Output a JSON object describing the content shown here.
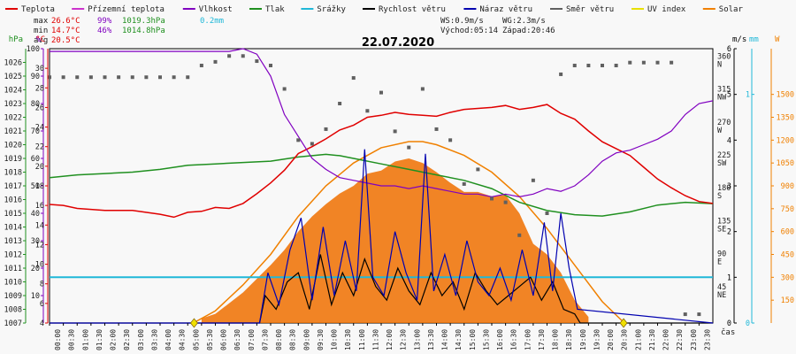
{
  "chart_data": {
    "type": "line",
    "title": "22.07.2020",
    "legend": [
      {
        "key": "teplota",
        "label": "Teplota",
        "color": "#e00000",
        "style": "line"
      },
      {
        "key": "prizemni",
        "label": "Přízemní teplota",
        "color": "#cc33cc",
        "style": "line"
      },
      {
        "key": "vlhkost",
        "label": "Vlhkost",
        "color": "#8000c0",
        "style": "line"
      },
      {
        "key": "tlak",
        "label": "Tlak",
        "color": "#209020",
        "style": "line"
      },
      {
        "key": "srazky",
        "label": "Srážky",
        "color": "#20b8d8",
        "style": "line"
      },
      {
        "key": "rychlost",
        "label": "Rychlost větru",
        "color": "#000000",
        "style": "line"
      },
      {
        "key": "naraz",
        "label": "Náraz větru",
        "color": "#0000b0",
        "style": "line"
      },
      {
        "key": "smer",
        "label": "Směr větru",
        "color": "#606060",
        "style": "line"
      },
      {
        "key": "uv",
        "label": "UV index",
        "color": "#e8e000",
        "style": "line"
      },
      {
        "key": "solar",
        "label": "Solar",
        "color": "#f08000",
        "style": "line"
      }
    ],
    "stats": {
      "max": {
        "label": "max",
        "temp": "26.6°C",
        "hum": "99%",
        "press": "1019.3hPa",
        "rain": "0.2mm"
      },
      "min": {
        "label": "min",
        "temp": "14.7°C",
        "hum": "46%",
        "press": "1014.8hPa"
      },
      "avg": {
        "label": "avg",
        "temp": "20.5°C"
      }
    },
    "info": {
      "ws": "WS:0.9m/s",
      "wg": "WG:2.3m/s",
      "sunrise": "Východ:05:14",
      "sunset": "Západ:20:46"
    },
    "axes": {
      "hpa": {
        "unit": "hPa",
        "range": [
          1007,
          1027
        ],
        "ticks": [
          1007,
          1008,
          1009,
          1010,
          1011,
          1012,
          1013,
          1014,
          1015,
          1016,
          1017,
          1018,
          1019,
          1020,
          1021,
          1022,
          1023,
          1024,
          1025,
          1026
        ],
        "color": "#209020"
      },
      "pct": {
        "unit": "%",
        "range": [
          0,
          100
        ],
        "ticks": [
          10,
          20,
          30,
          40,
          50,
          60,
          70,
          80,
          90,
          100
        ],
        "color": "#8000c0"
      },
      "degc": {
        "unit": "°C",
        "range": [
          4,
          32
        ],
        "ticks": [
          4,
          6,
          8,
          10,
          12,
          14,
          16,
          18,
          20,
          22,
          24,
          26,
          28,
          30
        ],
        "color": "#e00000"
      },
      "dir": {
        "range": [
          0,
          375
        ],
        "ticks": [
          {
            "v": "45",
            "s": "NE"
          },
          {
            "v": "90",
            "s": "E"
          },
          {
            "v": "135",
            "s": "SE"
          },
          {
            "v": "180",
            "s": "S"
          },
          {
            "v": "225",
            "s": "SW"
          },
          {
            "v": "270",
            "s": "W"
          },
          {
            "v": "315",
            "s": "NW"
          },
          {
            "v": "360",
            "s": "N"
          }
        ]
      },
      "ms": {
        "unit": "m/s",
        "range": [
          0,
          6
        ],
        "ticks": [
          0,
          1,
          2,
          3,
          4,
          5,
          6
        ]
      },
      "mm": {
        "unit": "mm",
        "range": [
          0,
          1.2
        ],
        "ticks": [
          0,
          1
        ],
        "color": "#20b8d8"
      },
      "wm2": {
        "unit": "W",
        "range": [
          0,
          1800
        ],
        "ticks": [
          150,
          300,
          450,
          600,
          750,
          900,
          1050,
          1200,
          1350,
          1500
        ],
        "color": "#f08000"
      },
      "x": {
        "label": "čas",
        "ticks": [
          "00:00",
          "00:30",
          "01:00",
          "01:30",
          "02:00",
          "02:30",
          "03:00",
          "03:30",
          "04:00",
          "04:30",
          "05:00",
          "05:30",
          "06:00",
          "06:30",
          "07:00",
          "07:30",
          "08:00",
          "08:30",
          "09:00",
          "09:30",
          "10:00",
          "10:30",
          "11:00",
          "11:30",
          "12:00",
          "12:30",
          "13:00",
          "13:30",
          "14:00",
          "14:30",
          "15:00",
          "15:30",
          "16:00",
          "16:30",
          "17:00",
          "17:30",
          "18:00",
          "18:30",
          "19:00",
          "19:30",
          "20:00",
          "20:30",
          "21:00",
          "21:30",
          "22:00",
          "22:30",
          "23:00",
          "23:30"
        ]
      }
    },
    "series": {
      "teplota": {
        "t": [
          0,
          0.5,
          1,
          2,
          3,
          4,
          4.5,
          5,
          5.5,
          6,
          6.5,
          7,
          7.5,
          8,
          8.5,
          9,
          9.5,
          10,
          10.5,
          11,
          11.5,
          12,
          12.5,
          13,
          13.5,
          14,
          14.5,
          15,
          15.5,
          16,
          16.5,
          17,
          17.5,
          18,
          18.5,
          19,
          19.5,
          20,
          20.5,
          21,
          21.5,
          22,
          22.5,
          23,
          23.5,
          24
        ],
        "v": [
          16.1,
          16.0,
          15.7,
          15.5,
          15.5,
          15.1,
          14.8,
          15.3,
          15.4,
          15.8,
          15.7,
          16.2,
          17.2,
          18.3,
          19.6,
          21.3,
          22.0,
          22.8,
          23.7,
          24.2,
          25.0,
          25.2,
          25.5,
          25.3,
          25.2,
          25.1,
          25.5,
          25.8,
          25.9,
          26.0,
          26.2,
          25.8,
          26.0,
          26.3,
          25.4,
          24.8,
          23.6,
          22.5,
          21.8,
          21.1,
          19.9,
          18.7,
          17.8,
          17.0,
          16.4,
          16.2
        ]
      },
      "vlhkost": {
        "t": [
          0,
          1,
          2,
          3,
          4,
          5,
          6,
          6.5,
          7,
          7.5,
          8,
          8.5,
          9,
          9.5,
          10,
          10.5,
          11,
          11.5,
          12,
          12.5,
          13,
          13.5,
          14,
          14.5,
          15,
          15.5,
          16,
          16.5,
          17,
          17.5,
          18,
          18.5,
          19,
          19.5,
          20,
          20.5,
          21,
          21.5,
          22,
          22.5,
          23,
          23.5,
          24
        ],
        "v": [
          99,
          99,
          99,
          99,
          99,
          99,
          99,
          99,
          100,
          98,
          90,
          76,
          68,
          60,
          56,
          53,
          52,
          51,
          50,
          50,
          49,
          50,
          49,
          48,
          47,
          47,
          46,
          47,
          46,
          47,
          49,
          48,
          50,
          54,
          59,
          62,
          63,
          65,
          67,
          70,
          76,
          80,
          81
        ]
      },
      "tlak": {
        "t": [
          0,
          1,
          2,
          3,
          4,
          5,
          6,
          7,
          8,
          9,
          10,
          10.5,
          11,
          12,
          13,
          14,
          15,
          16,
          17,
          18,
          19,
          20,
          21,
          22,
          23,
          24
        ],
        "v": [
          1017.6,
          1017.8,
          1017.9,
          1018.0,
          1018.2,
          1018.5,
          1018.6,
          1018.7,
          1018.8,
          1019.1,
          1019.3,
          1019.2,
          1019.0,
          1018.6,
          1018.2,
          1017.8,
          1017.4,
          1016.8,
          1015.8,
          1015.2,
          1014.9,
          1014.8,
          1015.1,
          1015.6,
          1015.8,
          1015.7
        ]
      },
      "srazky": {
        "t": [
          0,
          24
        ],
        "v": [
          0.2,
          0.2
        ]
      },
      "solar": {
        "t": [
          5.2,
          6,
          7,
          8,
          9,
          10,
          11,
          12,
          13,
          13.5,
          14,
          15,
          16,
          17,
          18,
          19,
          20,
          20.8
        ],
        "v": [
          0,
          80,
          250,
          450,
          700,
          900,
          1050,
          1150,
          1190,
          1190,
          1170,
          1100,
          990,
          830,
          620,
          380,
          140,
          0
        ]
      },
      "solar_measured": {
        "t": [
          5.5,
          6,
          7,
          8,
          8.5,
          9,
          9.5,
          10,
          10.5,
          11,
          11.5,
          12,
          12.5,
          13,
          13.5,
          14,
          14.5,
          15,
          15.5,
          16,
          16.5,
          17,
          17.5,
          18,
          18.5,
          19,
          19.5
        ],
        "v": [
          30,
          60,
          200,
          380,
          480,
          600,
          700,
          780,
          850,
          900,
          980,
          1000,
          1060,
          1080,
          1050,
          990,
          920,
          860,
          860,
          830,
          840,
          720,
          520,
          450,
          330,
          150,
          40
        ]
      },
      "rychlost": {
        "t": [
          0,
          7.6,
          7.8,
          8.2,
          8.6,
          9,
          9.4,
          9.8,
          10.2,
          10.6,
          11,
          11.4,
          11.8,
          12.2,
          12.6,
          13,
          13.4,
          13.8,
          14.2,
          14.6,
          15,
          15.4,
          15.8,
          16.2,
          16.6,
          17,
          17.4,
          17.8,
          18.2,
          18.6,
          19,
          19.2,
          24
        ],
        "v": [
          0,
          0,
          0.6,
          0.3,
          0.9,
          1.1,
          0.3,
          1.5,
          0.4,
          1.1,
          0.6,
          1.4,
          0.8,
          0.5,
          1.2,
          0.7,
          0.4,
          1.1,
          0.6,
          0.9,
          0.3,
          1.1,
          0.7,
          0.4,
          0.6,
          0.8,
          1.0,
          0.5,
          0.9,
          0.3,
          0.2,
          0,
          0
        ]
      },
      "naraz": {
        "t": [
          0,
          7.6,
          7.9,
          8.3,
          8.7,
          9.1,
          9.5,
          9.9,
          10.3,
          10.7,
          11.1,
          11.4,
          11.7,
          12.1,
          12.5,
          12.9,
          13.3,
          13.6,
          13.9,
          14.3,
          14.7,
          15.1,
          15.5,
          15.9,
          16.3,
          16.7,
          17.1,
          17.5,
          17.9,
          18.2,
          18.5,
          18.8,
          19.1,
          24
        ],
        "v": [
          0,
          0,
          1.1,
          0.4,
          1.6,
          2.3,
          0.5,
          2.1,
          0.6,
          1.8,
          0.7,
          3.8,
          1.0,
          0.6,
          2.0,
          1.1,
          0.5,
          3.7,
          0.7,
          1.5,
          0.6,
          1.8,
          0.9,
          0.6,
          1.2,
          0.5,
          1.6,
          0.6,
          2.2,
          0.7,
          2.4,
          1.2,
          0.3,
          0
        ]
      },
      "smer": {
        "t": [
          0,
          0.5,
          1,
          1.5,
          2,
          2.5,
          3,
          3.5,
          4,
          4.5,
          5,
          5.5,
          6,
          6.5,
          7,
          7.5,
          8,
          8.5,
          9,
          9.5,
          10,
          10.5,
          11,
          11.5,
          12,
          12.5,
          13,
          13.5,
          14,
          14.5,
          15,
          15.5,
          16,
          16.5,
          17,
          17.5,
          18,
          18.5,
          19,
          19.5,
          20,
          20.5,
          21,
          21.5,
          22,
          22.5,
          23,
          23.5
        ],
        "v": [
          336,
          336,
          336,
          336,
          336,
          336,
          336,
          336,
          336,
          336,
          336,
          352,
          357,
          365,
          365,
          358,
          352,
          320,
          250,
          245,
          265,
          300,
          335,
          290,
          315,
          262,
          240,
          320,
          265,
          250,
          190,
          210,
          170,
          165,
          120,
          195,
          150,
          340,
          352,
          352,
          352,
          352,
          356,
          356,
          356,
          356,
          12,
          12
        ]
      }
    }
  }
}
